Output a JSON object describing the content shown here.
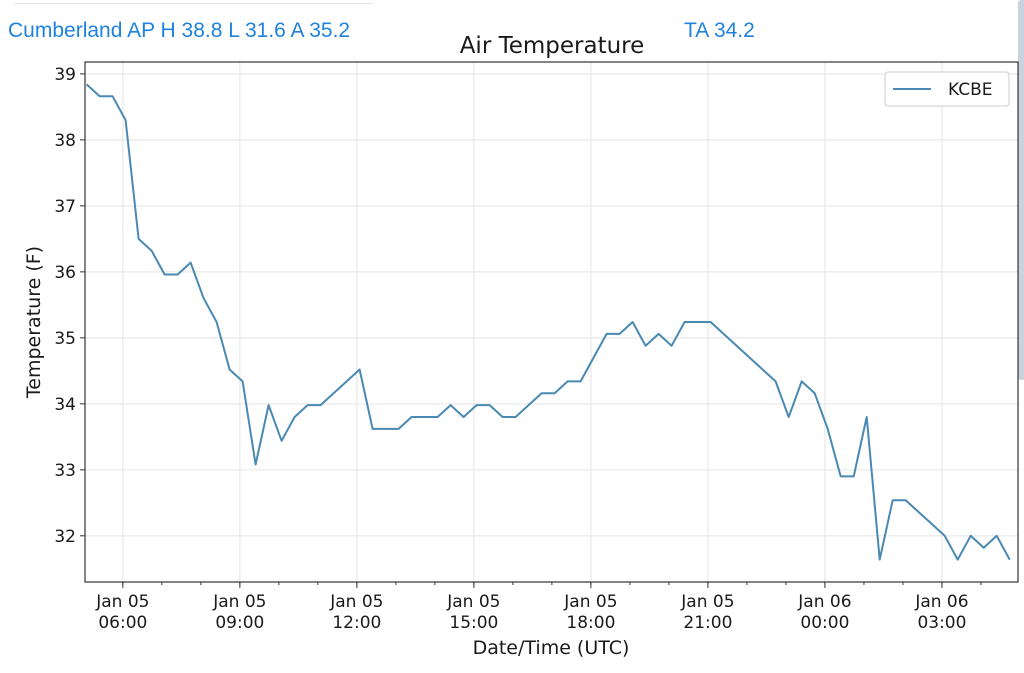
{
  "header": {
    "station_summary": "Cumberland AP H 38.8 L 31.6 A 35.2",
    "ta": "TA 34.2"
  },
  "chart_data": {
    "type": "line",
    "title": "Air Temperature",
    "xlabel": "Date/Time (UTC)",
    "ylabel": "Temperature (F)",
    "x_start_utc": "Jan 05 05:04",
    "x_start_hours_from_jan05_0000": 5.07,
    "x_step_minutes": 20,
    "xlim_hours_from_jan05_0000": [
      5.03,
      28.95
    ],
    "ylim": [
      31.3,
      39.18
    ],
    "grid": true,
    "legend": {
      "position": "top-right",
      "entries": [
        "KCBE"
      ]
    },
    "line_color": "#4a89b3",
    "yticks": [
      "32",
      "33",
      "34",
      "35",
      "36",
      "37",
      "38",
      "39"
    ],
    "xticks": [
      {
        "hour": 6,
        "line1": "Jan 05",
        "line2": "06:00"
      },
      {
        "hour": 9,
        "line1": "Jan 05",
        "line2": "09:00"
      },
      {
        "hour": 12,
        "line1": "Jan 05",
        "line2": "12:00"
      },
      {
        "hour": 15,
        "line1": "Jan 05",
        "line2": "15:00"
      },
      {
        "hour": 18,
        "line1": "Jan 05",
        "line2": "18:00"
      },
      {
        "hour": 21,
        "line1": "Jan 05",
        "line2": "21:00"
      },
      {
        "hour": 24,
        "line1": "Jan 06",
        "line2": "00:00"
      },
      {
        "hour": 27,
        "line1": "Jan 06",
        "line2": "03:00"
      }
    ],
    "series": [
      {
        "name": "KCBE",
        "values": [
          38.84,
          38.66,
          38.66,
          38.3,
          36.5,
          36.32,
          35.96,
          35.96,
          36.14,
          35.6,
          35.24,
          34.52,
          34.34,
          33.08,
          33.98,
          33.44,
          33.8,
          33.98,
          33.98,
          34.16,
          34.34,
          34.52,
          33.62,
          33.62,
          33.62,
          33.8,
          33.8,
          33.8,
          33.98,
          33.8,
          33.98,
          33.98,
          33.8,
          33.8,
          33.98,
          34.16,
          34.16,
          34.34,
          34.34,
          34.7,
          35.06,
          35.06,
          35.24,
          34.88,
          35.06,
          34.88,
          35.24,
          35.24,
          35.24,
          35.06,
          34.88,
          34.7,
          34.52,
          34.34,
          33.8,
          34.34,
          34.16,
          33.62,
          32.9,
          32.9,
          33.8,
          31.64,
          32.54,
          32.54,
          32.36,
          32.18,
          32.0,
          31.64,
          32.0,
          31.82,
          32.0,
          31.64
        ]
      }
    ]
  }
}
